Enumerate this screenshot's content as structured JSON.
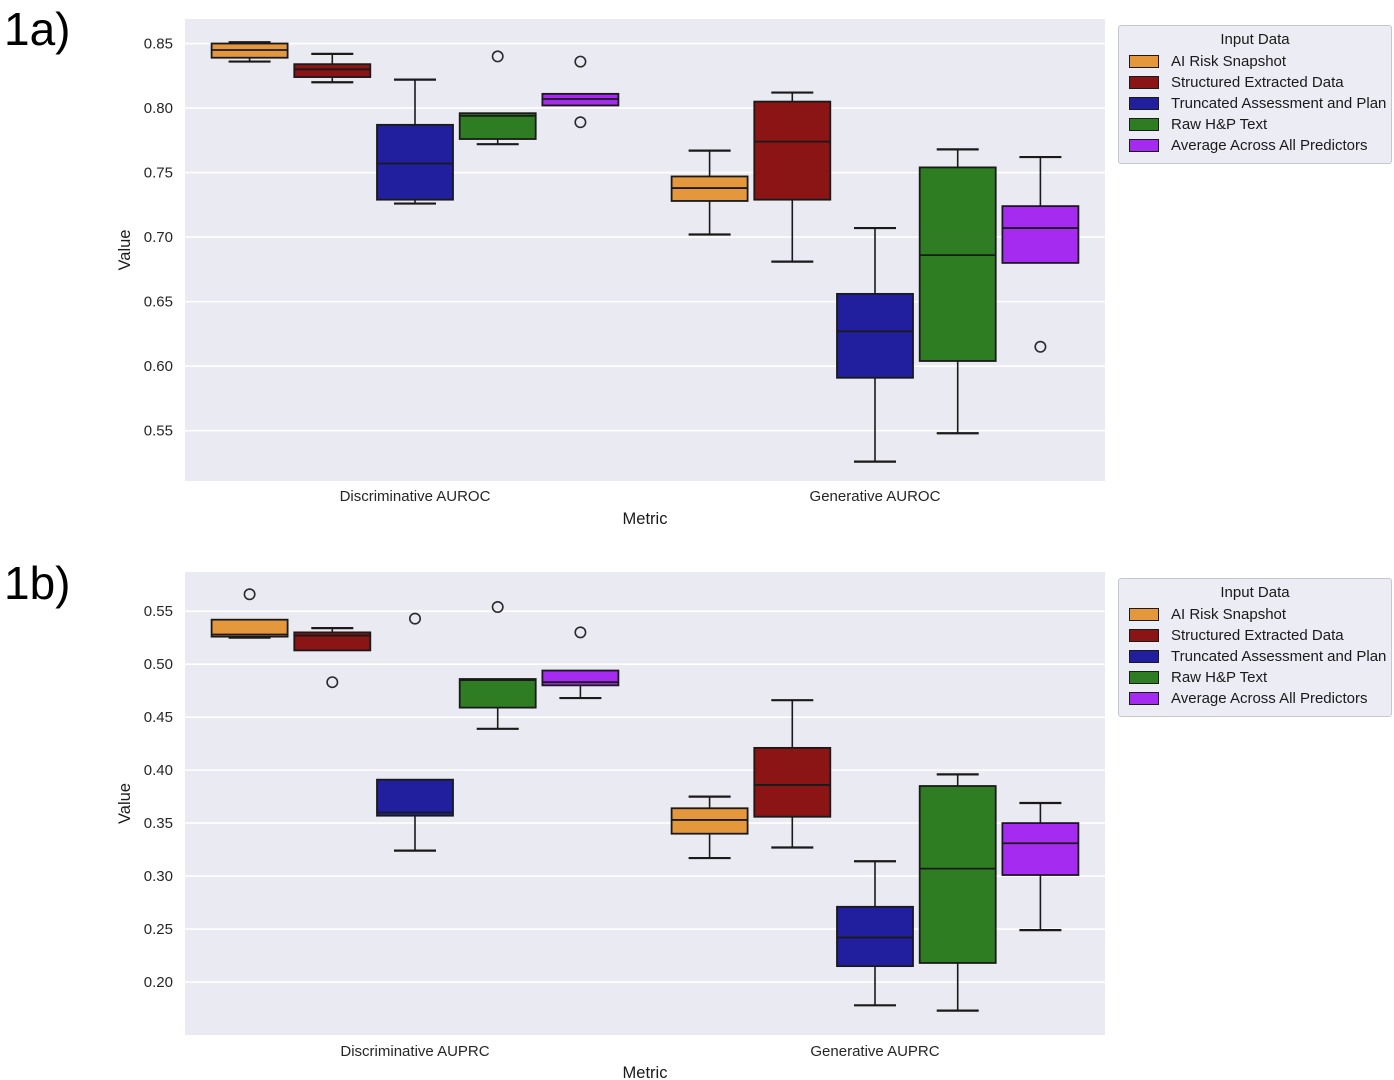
{
  "panels": [
    {
      "label": "1a)"
    },
    {
      "label": "1b)"
    }
  ],
  "legend": {
    "title": "Input Data",
    "entries": [
      {
        "label": "AI Risk Snapshot",
        "color": "#E5973C"
      },
      {
        "label": "Structured Extracted Data",
        "color": "#8B1414"
      },
      {
        "label": "Truncated Assessment and Plan",
        "color": "#221F9E"
      },
      {
        "label": "Raw H&P Text",
        "color": "#2E7D23"
      },
      {
        "label": "Average Across All Predictors",
        "color": "#A52BF0"
      }
    ]
  },
  "chart_data": [
    {
      "type": "boxplot",
      "panel": "1a",
      "title": "",
      "xlabel": "Metric",
      "ylabel": "Value",
      "categories": [
        "Discriminative AUROC",
        "Generative AUROC"
      ],
      "yticks": [
        0.85,
        0.8,
        0.75,
        0.7,
        0.65,
        0.6,
        0.55
      ],
      "ylim": [
        0.511,
        0.869
      ],
      "grid": "horizontal",
      "legend_title": "Input Data",
      "legend_position": "outside upper right",
      "series": [
        {
          "name": "AI Risk Snapshot",
          "color": "#E5973C",
          "boxes": [
            {
              "whislo": 0.836,
              "q1": 0.839,
              "med": 0.845,
              "q3": 0.85,
              "whishi": 0.851,
              "fliers": []
            },
            {
              "whislo": 0.702,
              "q1": 0.728,
              "med": 0.738,
              "q3": 0.747,
              "whishi": 0.767,
              "fliers": []
            }
          ]
        },
        {
          "name": "Structured Extracted Data",
          "color": "#8B1414",
          "boxes": [
            {
              "whislo": 0.82,
              "q1": 0.824,
              "med": 0.83,
              "q3": 0.834,
              "whishi": 0.842,
              "fliers": []
            },
            {
              "whislo": 0.681,
              "q1": 0.729,
              "med": 0.774,
              "q3": 0.805,
              "whishi": 0.812,
              "fliers": []
            }
          ]
        },
        {
          "name": "Truncated Assessment and Plan",
          "color": "#221F9E",
          "boxes": [
            {
              "whislo": 0.726,
              "q1": 0.729,
              "med": 0.757,
              "q3": 0.787,
              "whishi": 0.822,
              "fliers": []
            },
            {
              "whislo": 0.526,
              "q1": 0.591,
              "med": 0.627,
              "q3": 0.656,
              "whishi": 0.707,
              "fliers": []
            }
          ]
        },
        {
          "name": "Raw H&P Text",
          "color": "#2E7D23",
          "boxes": [
            {
              "whislo": 0.772,
              "q1": 0.776,
              "med": 0.794,
              "q3": 0.796,
              "whishi": 0.796,
              "fliers": [
                0.84
              ]
            },
            {
              "whislo": 0.548,
              "q1": 0.604,
              "med": 0.686,
              "q3": 0.754,
              "whishi": 0.768,
              "fliers": []
            }
          ]
        },
        {
          "name": "Average Across All Predictors",
          "color": "#A52BF0",
          "boxes": [
            {
              "whislo": 0.802,
              "q1": 0.802,
              "med": 0.807,
              "q3": 0.811,
              "whishi": 0.811,
              "fliers": [
                0.836,
                0.789
              ]
            },
            {
              "whislo": 0.68,
              "q1": 0.68,
              "med": 0.707,
              "q3": 0.724,
              "whishi": 0.762,
              "fliers": [
                0.615
              ]
            }
          ]
        }
      ]
    },
    {
      "type": "boxplot",
      "panel": "1b",
      "title": "",
      "xlabel": "Metric",
      "ylabel": "Value",
      "categories": [
        "Discriminative AUPRC",
        "Generative AUPRC"
      ],
      "yticks": [
        0.55,
        0.5,
        0.45,
        0.4,
        0.35,
        0.3,
        0.25,
        0.2
      ],
      "ylim": [
        0.15,
        0.587
      ],
      "grid": "horizontal",
      "legend_title": "Input Data",
      "legend_position": "outside upper right",
      "series": [
        {
          "name": "AI Risk Snapshot",
          "color": "#E5973C",
          "boxes": [
            {
              "whislo": 0.525,
              "q1": 0.526,
              "med": 0.528,
              "q3": 0.542,
              "whishi": 0.542,
              "fliers": [
                0.566
              ]
            },
            {
              "whislo": 0.317,
              "q1": 0.34,
              "med": 0.353,
              "q3": 0.364,
              "whishi": 0.375,
              "fliers": []
            }
          ]
        },
        {
          "name": "Structured Extracted Data",
          "color": "#8B1414",
          "boxes": [
            {
              "whislo": 0.513,
              "q1": 0.513,
              "med": 0.527,
              "q3": 0.53,
              "whishi": 0.534,
              "fliers": [
                0.483
              ]
            },
            {
              "whislo": 0.327,
              "q1": 0.356,
              "med": 0.386,
              "q3": 0.421,
              "whishi": 0.466,
              "fliers": []
            }
          ]
        },
        {
          "name": "Truncated Assessment and Plan",
          "color": "#221F9E",
          "boxes": [
            {
              "whislo": 0.324,
              "q1": 0.357,
              "med": 0.36,
              "q3": 0.391,
              "whishi": 0.391,
              "fliers": [
                0.543
              ]
            },
            {
              "whislo": 0.178,
              "q1": 0.215,
              "med": 0.242,
              "q3": 0.271,
              "whishi": 0.314,
              "fliers": []
            }
          ]
        },
        {
          "name": "Raw H&P Text",
          "color": "#2E7D23",
          "boxes": [
            {
              "whislo": 0.439,
              "q1": 0.459,
              "med": 0.485,
              "q3": 0.486,
              "whishi": 0.486,
              "fliers": [
                0.554
              ]
            },
            {
              "whislo": 0.173,
              "q1": 0.218,
              "med": 0.307,
              "q3": 0.385,
              "whishi": 0.396,
              "fliers": []
            }
          ]
        },
        {
          "name": "Average Across All Predictors",
          "color": "#A52BF0",
          "boxes": [
            {
              "whislo": 0.468,
              "q1": 0.48,
              "med": 0.483,
              "q3": 0.494,
              "whishi": 0.494,
              "fliers": [
                0.53
              ]
            },
            {
              "whislo": 0.249,
              "q1": 0.301,
              "med": 0.331,
              "q3": 0.35,
              "whishi": 0.369,
              "fliers": []
            }
          ]
        }
      ]
    }
  ]
}
